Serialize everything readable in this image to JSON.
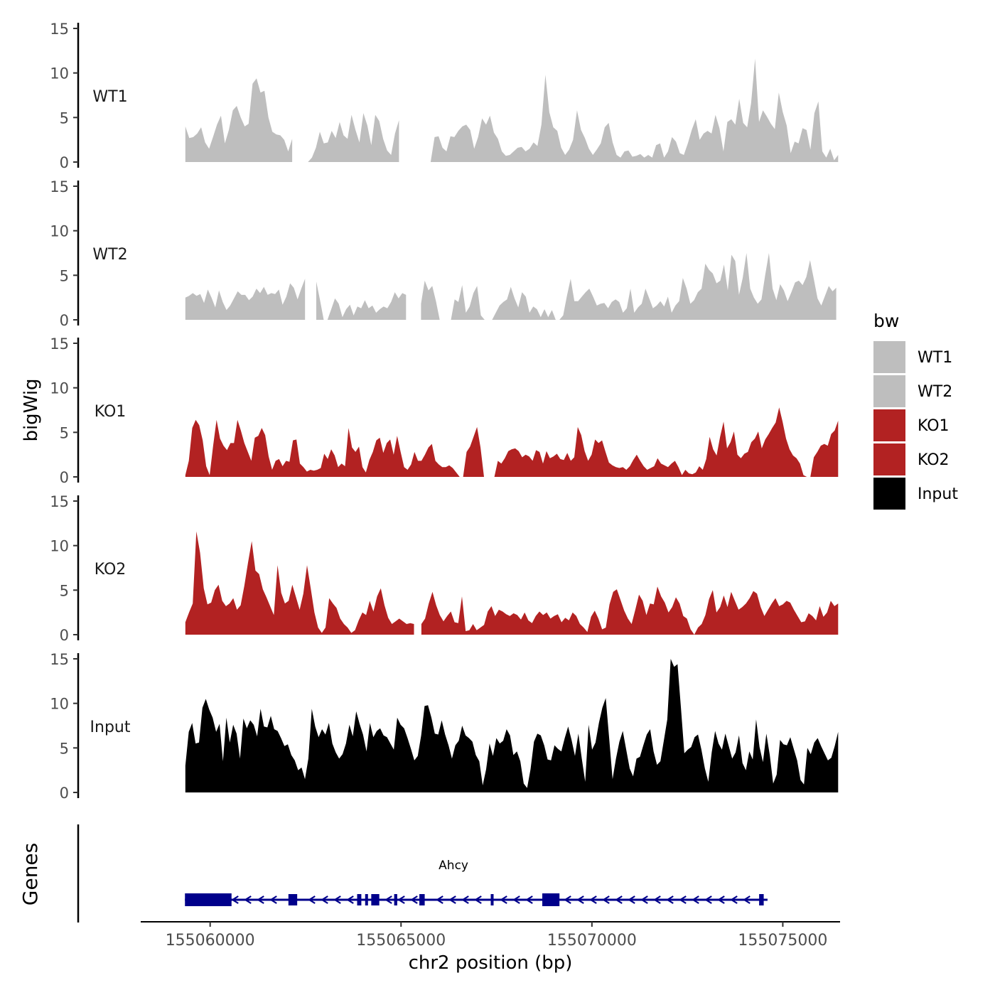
{
  "chart_data": {
    "type": "area",
    "title": "",
    "xlabel": "chr2 position (bp)",
    "ylabel": "bigWig",
    "genes_label": "Genes",
    "xlim": [
      155058200,
      155076500
    ],
    "ylim": [
      0,
      15
    ],
    "xticks": [
      155060000,
      155065000,
      155070000,
      155075000
    ],
    "xtick_labels": [
      "155060000",
      "155065000",
      "155070000",
      "155075000"
    ],
    "yticks": [
      0,
      5,
      10,
      15
    ],
    "ytick_labels": [
      "0",
      "5",
      "10",
      "15"
    ],
    "legend": {
      "title": "bw",
      "position": "right",
      "entries": [
        {
          "label": "WT1",
          "color": "#bebebe"
        },
        {
          "label": "WT2",
          "color": "#bebebe"
        },
        {
          "label": "KO1",
          "color": "#b22222"
        },
        {
          "label": "KO2",
          "color": "#b22222"
        },
        {
          "label": "Input",
          "color": "#000000"
        }
      ]
    },
    "series": [
      {
        "name": "WT1",
        "color": "#bebebe",
        "x_start": 155059350,
        "x_end": 155076450,
        "gaps": [
          [
            155062250,
            155062500
          ],
          [
            155065000,
            155065400
          ]
        ],
        "values": [
          4,
          2.7,
          2.8,
          3.2,
          3.9,
          2.2,
          1.5,
          2.8,
          4.2,
          5.2,
          2.1,
          3.6,
          5.8,
          6.3,
          5,
          4,
          4.3,
          8.8,
          9.4,
          7.8,
          8,
          5,
          3.4,
          3.1,
          3,
          2.5,
          1.2,
          2.6,
          2.8,
          2,
          1,
          0,
          0.5,
          1.6,
          3.4,
          2.1,
          2.2,
          3.5,
          2.7,
          4.5,
          3,
          2.6,
          5.3,
          3.6,
          2.2,
          5.5,
          4.1,
          1.9,
          5.3,
          4.6,
          2.6,
          1.3,
          0.8,
          3.2,
          4.7,
          3.8,
          2.6,
          1.8,
          1,
          0,
          0,
          0,
          0,
          2.8,
          2.9,
          1.6,
          1.2,
          2.9,
          2.8,
          3.5,
          4,
          4.2,
          3.6,
          1.5,
          2.8,
          4.9,
          4.2,
          5.2,
          3.3,
          2.6,
          1.2,
          0.7,
          0.8,
          1.2,
          1.6,
          1.7,
          1.2,
          1.5,
          2.2,
          1.8,
          4.2,
          9.8,
          5.6,
          3.9,
          3.5,
          1.6,
          0.8,
          1.4,
          2.5,
          5.8,
          3.6,
          2.7,
          1.5,
          0.8,
          1.4,
          2.1,
          3.9,
          4.4,
          2.2,
          0.8,
          0.5,
          1.2,
          1.3,
          0.6,
          0.7,
          0.9,
          0.5,
          0.8,
          0.5,
          1.9,
          2.1,
          0.5,
          1.2,
          2.8,
          2.3,
          1,
          0.8,
          2.1,
          3.6,
          4.8,
          2.5,
          3.2,
          3.5,
          3.2,
          5.3,
          3.8,
          1.2,
          4.5,
          4.8,
          4.2,
          7.1,
          4.4,
          3.9,
          6.6,
          11.6,
          4.5,
          5.8,
          5.1,
          4.3,
          3.7,
          7.8,
          5.6,
          4.1,
          1,
          2.3,
          2.1,
          3.8,
          3.6,
          1.4,
          5.5,
          6.8,
          1.2,
          0.5,
          1.5,
          0.2,
          0.8
        ]
      },
      {
        "name": "WT2",
        "color": "#bebebe",
        "x_start": 155059350,
        "x_end": 155076400,
        "gaps": [
          [
            155062500,
            155062750
          ],
          [
            155065200,
            155065450
          ]
        ],
        "values": [
          2.5,
          2.7,
          3,
          2.7,
          2.9,
          1.9,
          3.4,
          2.5,
          1.4,
          3.3,
          2,
          1.1,
          1.6,
          2.4,
          3.2,
          2.8,
          2.8,
          2.2,
          2.6,
          3.5,
          3,
          3.7,
          2.8,
          3,
          2.9,
          3.4,
          1.7,
          2.6,
          4.1,
          3.6,
          2.3,
          3.5,
          4.6,
          2.8,
          2.9,
          4.3,
          2.2,
          0,
          0,
          1.2,
          2.4,
          1.8,
          0.3,
          1.2,
          1.7,
          0.5,
          1.5,
          1.3,
          2.2,
          1.3,
          1.6,
          0.8,
          1.2,
          1.5,
          1.3,
          2,
          3.1,
          2.4,
          3,
          2.8,
          1.5,
          1.3,
          0.7,
          1.8,
          4.4,
          3.3,
          3.8,
          2.1,
          0,
          0,
          0,
          0,
          2.3,
          2,
          3.9,
          0.8,
          1.5,
          3,
          3.8,
          0.5,
          0,
          0,
          0,
          0.8,
          1.6,
          2,
          2.3,
          3.7,
          2.4,
          1.4,
          3.1,
          2.6,
          0.8,
          1.5,
          1.2,
          0.3,
          1.2,
          0.3,
          1.1,
          0,
          0,
          0.5,
          2.7,
          4.6,
          2.1,
          2.1,
          2.6,
          3.1,
          3.5,
          2.6,
          1.6,
          1.8,
          1.9,
          1.3,
          2,
          2.3,
          2,
          0.8,
          1.3,
          3.5,
          0.8,
          1.4,
          1.8,
          3.5,
          2.4,
          1.3,
          1.6,
          2.1,
          1.5,
          2.6,
          0.8,
          1.6,
          2.1,
          4.7,
          3.5,
          1.8,
          2.2,
          3.1,
          3.5,
          6.3,
          5.6,
          5.2,
          4.1,
          4.4,
          6.2,
          3.3,
          7.3,
          6.6,
          2.8,
          4.7,
          7.5,
          3.5,
          2.5,
          1.8,
          2.3,
          5,
          7.5,
          3.5,
          2.2,
          4,
          3.3,
          2.1,
          3.1,
          4.2,
          4.4,
          3.9,
          4.8,
          6.7,
          4.6,
          2.4,
          1.6,
          2.7,
          3.8,
          3.2,
          3.6
        ]
      },
      {
        "name": "KO1",
        "color": "#b22222",
        "x_start": 155059350,
        "x_end": 155076450,
        "gaps": [
          [
            155066300,
            155066350
          ],
          [
            155067100,
            155067150
          ]
        ],
        "values": [
          0.2,
          1.8,
          5.5,
          6.4,
          5.8,
          4.1,
          1.2,
          0.2,
          3.5,
          6.4,
          4.3,
          3.5,
          3,
          3.8,
          3.8,
          6.4,
          5.2,
          3.8,
          2.8,
          1.8,
          4.4,
          4.6,
          5.5,
          4.7,
          2.3,
          0.8,
          1.8,
          2,
          1.2,
          1.8,
          1.7,
          4.1,
          4.2,
          1.5,
          1.1,
          0.6,
          0.8,
          0.7,
          0.8,
          1,
          2.6,
          2,
          3.1,
          2.4,
          1.1,
          1.5,
          1.2,
          5.5,
          3.3,
          2.8,
          3.4,
          1.1,
          0.5,
          1.9,
          2.8,
          4.1,
          4.4,
          2.7,
          3.8,
          4.2,
          2.5,
          4.6,
          2.8,
          1.1,
          0.8,
          1.4,
          2.8,
          1.8,
          1.8,
          2.5,
          3.3,
          3.7,
          1.8,
          1.4,
          1.1,
          1.1,
          1.3,
          1,
          0.5,
          0,
          0,
          2.8,
          3.4,
          4.5,
          5.6,
          3.3,
          0,
          0,
          0,
          0,
          1.8,
          1.5,
          2.1,
          2.9,
          3.1,
          3.2,
          2.9,
          2.2,
          2.5,
          2.3,
          1.8,
          3,
          2.8,
          1.5,
          2.9,
          2.1,
          2.3,
          2.6,
          2,
          1.9,
          2.7,
          1.8,
          2.2,
          5.6,
          4.7,
          2.9,
          1.8,
          2.5,
          4.2,
          3.8,
          4.1,
          2.8,
          1.6,
          1.3,
          1.1,
          1,
          1.1,
          0.8,
          1.2,
          1.9,
          2.5,
          1.8,
          1.2,
          0.8,
          1,
          1.2,
          2.1,
          1.5,
          1.3,
          1.1,
          1.5,
          1.8,
          1.1,
          0.2,
          0.8,
          0.4,
          0.3,
          0.5,
          1.2,
          0.8,
          2,
          4.5,
          3.1,
          2.4,
          4.5,
          6.2,
          3.2,
          3.9,
          5.1,
          2.5,
          2.1,
          2.6,
          2.8,
          3.9,
          4.3,
          5.1,
          3.2,
          4.2,
          4.8,
          5.5,
          6.1,
          7.8,
          6.2,
          4.3,
          3.1,
          2.4,
          2.1,
          1.5,
          0.2,
          0,
          0,
          2.2,
          2.8,
          3.5,
          3.7,
          3.5,
          4.8,
          5.2,
          6.3
        ]
      },
      {
        "name": "KO2",
        "color": "#b22222",
        "x_start": 155059350,
        "x_end": 155076450,
        "gaps": [
          [
            155062350,
            155062400
          ],
          [
            155063050,
            155063100
          ],
          [
            155065400,
            155065450
          ],
          [
            155071750,
            155071800
          ]
        ],
        "values": [
          1.4,
          2.5,
          3.5,
          11.6,
          9.2,
          5.2,
          3.4,
          3.6,
          5,
          5.6,
          3.8,
          3.2,
          3.5,
          4.1,
          2.8,
          3.3,
          5.5,
          8.1,
          10.5,
          7.2,
          6.8,
          5.1,
          4.2,
          3.2,
          2.2,
          7.8,
          4.7,
          3.5,
          3.8,
          5.6,
          4.2,
          2.8,
          4.6,
          7.8,
          5.2,
          2.5,
          0.8,
          0.2,
          0.8,
          4.1,
          3.5,
          3,
          1.8,
          1.2,
          0.8,
          0.2,
          0.5,
          1.6,
          2.5,
          2.2,
          3.8,
          2.6,
          4.3,
          5.2,
          3.3,
          1.9,
          1.2,
          1.5,
          1.8,
          1.5,
          1.2,
          1.3,
          1.2,
          0.6,
          1.2,
          1.8,
          3.5,
          4.8,
          3.3,
          2.2,
          1.5,
          2.1,
          2.6,
          1.4,
          1.3,
          4.3,
          0.4,
          0.5,
          1.2,
          0.5,
          0.8,
          1.1,
          2.6,
          3.2,
          2.1,
          2.8,
          2.6,
          2.3,
          2.1,
          2.4,
          2.2,
          1.7,
          2.5,
          1.6,
          1.3,
          2.1,
          2.6,
          2.2,
          2.5,
          1.8,
          2.1,
          2.3,
          1.4,
          1.9,
          1.6,
          2.5,
          2.1,
          1.2,
          0.8,
          0.3,
          2,
          2.7,
          1.8,
          0.6,
          0.8,
          3.4,
          4.8,
          5.1,
          3.9,
          2.7,
          1.8,
          1.2,
          2.8,
          4.5,
          3.8,
          2.2,
          3.5,
          3.4,
          5.4,
          4.3,
          3.6,
          2.5,
          3.1,
          4.2,
          3.5,
          2.1,
          1.8,
          0.6,
          0,
          0.8,
          1.2,
          2.2,
          4,
          5,
          2.5,
          3.1,
          4.4,
          3.1,
          4.8,
          3.8,
          2.8,
          3.1,
          3.5,
          4.1,
          4.9,
          4.6,
          3.1,
          2.1,
          2.8,
          3.5,
          4.1,
          3.2,
          3.4,
          3.8,
          3.6,
          2.8,
          2.1,
          1.4,
          1.5,
          2.4,
          2.1,
          1.6,
          3.2,
          2,
          2.5,
          3.8,
          3.2,
          3.5
        ]
      },
      {
        "name": "Input",
        "color": "#000000",
        "x_start": 155059350,
        "x_end": 155076450,
        "gaps": [],
        "values": [
          3,
          6.8,
          7.8,
          5.5,
          5.6,
          9.5,
          10.5,
          9.3,
          8.4,
          6.8,
          7.7,
          3.5,
          8.4,
          5.6,
          7.6,
          6.6,
          3.8,
          8.3,
          7.2,
          8.1,
          7.6,
          6.3,
          9.4,
          7.4,
          7.3,
          8.6,
          7.1,
          6.9,
          6.1,
          5.2,
          5.4,
          4.2,
          3.6,
          2.5,
          2.8,
          1.5,
          3.8,
          9.4,
          7.4,
          6.2,
          7.1,
          6.5,
          7.8,
          5.5,
          4.5,
          3.8,
          4.3,
          5.5,
          7.6,
          6.3,
          9.1,
          7.7,
          6.5,
          4.6,
          7.8,
          6.2,
          6.9,
          7.2,
          6.4,
          6.2,
          5.5,
          4.8,
          8.4,
          7.6,
          7.2,
          6.1,
          4.9,
          3.6,
          4.1,
          6.4,
          9.7,
          9.8,
          8.4,
          6.6,
          6.5,
          8.1,
          6.5,
          5.3,
          3.8,
          5.3,
          5.8,
          7.5,
          6.4,
          6.1,
          5.7,
          4.2,
          3.5,
          0.8,
          2.6,
          5.5,
          4.1,
          6.1,
          5.5,
          5.8,
          7.1,
          6.4,
          4.2,
          4.6,
          3.5,
          1,
          0.5,
          2.6,
          5.7,
          6.6,
          6.4,
          5.3,
          3.7,
          3.6,
          5.3,
          4.9,
          4.6,
          6.1,
          7.4,
          5.9,
          4.1,
          6.6,
          3.8,
          1.2,
          7.6,
          4.8,
          5.6,
          7.8,
          9.5,
          10.6,
          6.1,
          1.5,
          3.8,
          5.7,
          6.9,
          4.8,
          2.7,
          1.8,
          3.8,
          4,
          5.3,
          6.5,
          7.1,
          4.6,
          3.1,
          3.5,
          5.8,
          8.2,
          15,
          14.1,
          14.4,
          9.5,
          4.4,
          4.8,
          5.1,
          6.2,
          6.5,
          4.8,
          2.7,
          1.2,
          4.5,
          6.9,
          5.5,
          4.8,
          6.6,
          5.2,
          3.8,
          4.5,
          6.4,
          3.3,
          2.5,
          4.6,
          3.7,
          8.2,
          5.1,
          3.4,
          6.6,
          4.2,
          1,
          2,
          5.9,
          5.4,
          5.3,
          6.2,
          4.9,
          3.6,
          1.4,
          0.9,
          5,
          4.3,
          5.6,
          6.1,
          5.2,
          4.4,
          3.6,
          3.9,
          5.2,
          6.8
        ]
      }
    ],
    "genes": [
      {
        "name": "Ahcy",
        "strand": "-",
        "start": 155059340,
        "end": 155074600,
        "exons": [
          [
            155059340,
            155060560,
            "utr"
          ],
          [
            155062050,
            155062280,
            "cds"
          ],
          [
            155063850,
            155063960,
            "cds"
          ],
          [
            155064060,
            155064110,
            "cds"
          ],
          [
            155064220,
            155064430,
            "cds"
          ],
          [
            155064820,
            155064900,
            "cds"
          ],
          [
            155065480,
            155065620,
            "cds"
          ],
          [
            155067350,
            155067400,
            "cds"
          ],
          [
            155068700,
            155069150,
            "utr"
          ],
          [
            155074380,
            155074500,
            "cds"
          ]
        ]
      }
    ]
  }
}
